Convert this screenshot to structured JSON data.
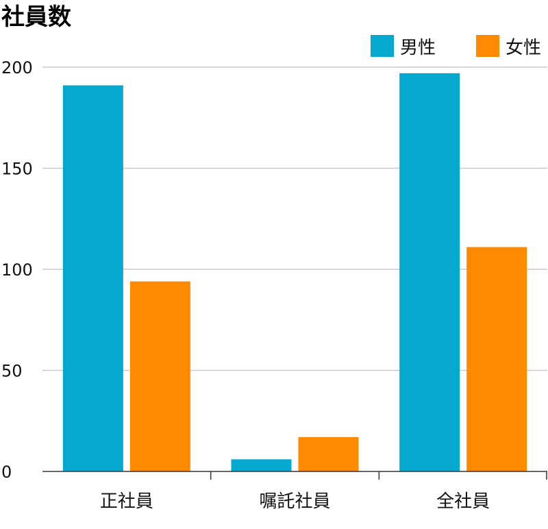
{
  "chart_data": {
    "type": "bar",
    "title": "社員数",
    "xlabel": "",
    "ylabel": "",
    "categories": [
      "正社員",
      "嘱託社員",
      "全社員"
    ],
    "series": [
      {
        "name": "男性",
        "values": [
          191,
          6,
          197
        ],
        "color": "#05A8CE"
      },
      {
        "name": "女性",
        "values": [
          94,
          17,
          111
        ],
        "color": "#FF8A00"
      }
    ],
    "ylim": [
      0,
      200
    ],
    "yticks": [
      0,
      50,
      100,
      150,
      200
    ],
    "grid": true,
    "legend": "top-right"
  }
}
